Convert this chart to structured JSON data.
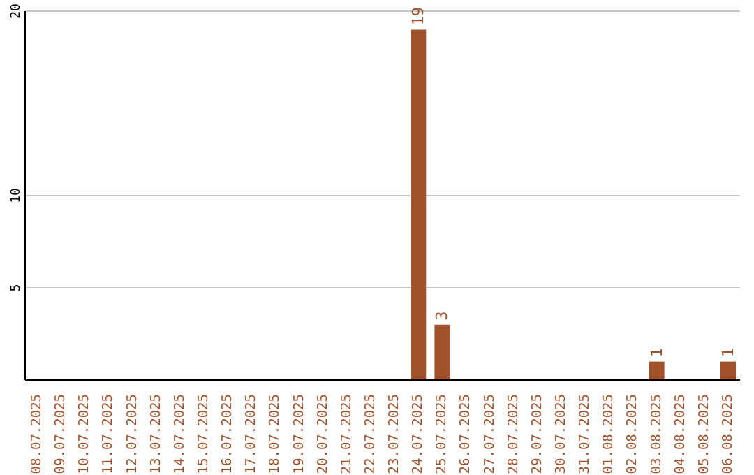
{
  "chart_data": {
    "type": "bar",
    "categories": [
      "08.07.2025",
      "09.07.2025",
      "10.07.2025",
      "11.07.2025",
      "12.07.2025",
      "13.07.2025",
      "14.07.2025",
      "15.07.2025",
      "16.07.2025",
      "17.07.2025",
      "18.07.2025",
      "19.07.2025",
      "20.07.2025",
      "21.07.2025",
      "22.07.2025",
      "23.07.2025",
      "24.07.2025",
      "25.07.2025",
      "26.07.2025",
      "27.07.2025",
      "28.07.2025",
      "29.07.2025",
      "30.07.2025",
      "31.07.2025",
      "01.08.2025",
      "02.08.2025",
      "03.08.2025",
      "04.08.2025",
      "05.08.2025",
      "06.08.2025"
    ],
    "values": [
      0,
      0,
      0,
      0,
      0,
      0,
      0,
      0,
      0,
      0,
      0,
      0,
      0,
      0,
      0,
      0,
      19,
      3,
      0,
      0,
      0,
      0,
      0,
      0,
      0,
      0,
      1,
      0,
      0,
      1
    ],
    "value_labels": [
      null,
      null,
      null,
      null,
      null,
      null,
      null,
      null,
      null,
      null,
      null,
      null,
      null,
      null,
      null,
      null,
      "19",
      "3",
      null,
      null,
      null,
      null,
      null,
      null,
      null,
      null,
      "1",
      null,
      null,
      "1"
    ],
    "color": "#a0522d",
    "ylim": [
      0,
      20
    ],
    "yticks": [
      5,
      10,
      20
    ],
    "grid": "y"
  }
}
